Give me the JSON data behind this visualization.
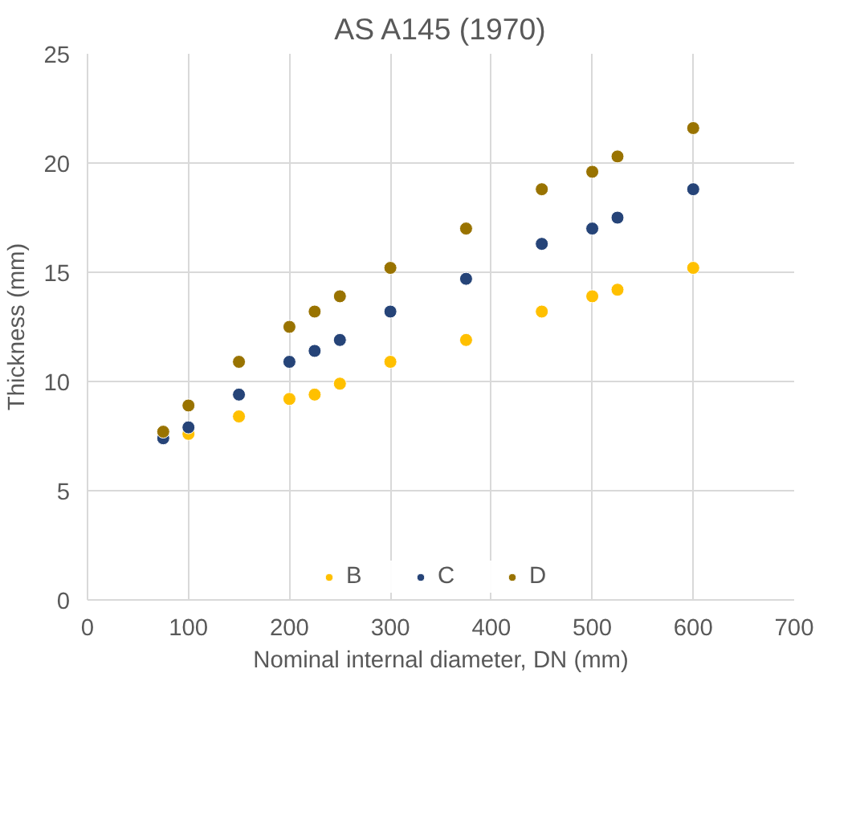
{
  "chart_data": {
    "type": "scatter",
    "title": "AS A145 (1970)",
    "xlabel": "Nominal internal diameter, DN (mm)",
    "ylabel": "Thickness (mm)",
    "x": [
      75,
      100,
      150,
      200,
      225,
      250,
      300,
      375,
      450,
      500,
      525,
      600
    ],
    "series": [
      {
        "name": "B",
        "color": "#ffc000",
        "values": [
          null,
          7.6,
          8.4,
          9.2,
          9.4,
          9.9,
          10.9,
          11.9,
          13.2,
          13.9,
          14.2,
          15.2
        ]
      },
      {
        "name": "C",
        "color": "#264478",
        "values": [
          7.4,
          7.9,
          9.4,
          10.9,
          11.4,
          11.9,
          13.2,
          14.7,
          16.3,
          17.0,
          17.5,
          18.8
        ]
      },
      {
        "name": "D",
        "color": "#997300",
        "values": [
          7.7,
          8.9,
          10.9,
          12.5,
          13.2,
          13.9,
          15.2,
          17.0,
          18.8,
          19.6,
          20.3,
          21.6
        ]
      }
    ],
    "xlim": [
      0,
      700
    ],
    "xticks": [
      0,
      100,
      200,
      300,
      400,
      500,
      600,
      700
    ],
    "ylim": [
      0,
      25
    ],
    "yticks": [
      0,
      5,
      10,
      15,
      20,
      25
    ],
    "grid": true,
    "legend": "bottom",
    "marker": "circle"
  }
}
